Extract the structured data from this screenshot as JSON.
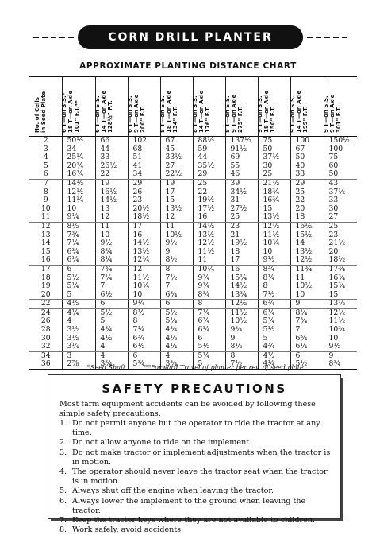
{
  "banner": {
    "title": "CORN DRILL PLANTER"
  },
  "chart_title": "APPROXIMATE PLANTING DISTANCE CHART",
  "table": {
    "headers": [
      "No. of Cells\nin Seed Plate",
      "6 T—on S.S.*\n18 T—on Axle\n101\" F.T.**",
      "6 T—on S.S.\n14 T—on Axle\n128½\" F.T.",
      "6 T—on S.S.\n9 T—on Axle\n200\" F.T.",
      "8 T—on S.S.\n18 T—on Axle\n134\" F.T.",
      "8 T—on S.S.\n14 T—on Axle\n176\" F.T.",
      "8 T—on S.S.\n9 T—on Axle\n275\" F.T.",
      "9 T—on S.S.\n18 T—on Axle\n150\" F.T.",
      "9 T—on S.S.\n14 T—on Axle\n199\" F.T.",
      "9 T—on S.S.\n9 T—on Axle\n301\" F.T."
    ],
    "rows": [
      [
        "2",
        "50½",
        "66",
        "102",
        "67",
        "88½",
        "137½",
        "75",
        "100",
        "150½"
      ],
      [
        "3",
        "34",
        "44",
        "68",
        "45",
        "59",
        "91½",
        "50",
        "67",
        "100"
      ],
      [
        "4",
        "25¼",
        "33",
        "51",
        "33½",
        "44",
        "69",
        "37½",
        "50",
        "75"
      ],
      [
        "5",
        "20¼",
        "26½",
        "41",
        "27",
        "35½",
        "55",
        "30",
        "40",
        "60"
      ],
      [
        "6",
        "16¾",
        "22",
        "34",
        "22½",
        "29",
        "46",
        "25",
        "33",
        "50"
      ],
      [
        "7",
        "14½",
        "19",
        "29",
        "19",
        "25",
        "39",
        "21½",
        "29",
        "43"
      ],
      [
        "8",
        "12½",
        "16½",
        "26",
        "17",
        "22",
        "34½",
        "18¾",
        "25",
        "37½"
      ],
      [
        "9",
        "11¼",
        "14½",
        "23",
        "15",
        "19½",
        "31",
        "16¾",
        "22",
        "33"
      ],
      [
        "10",
        "10",
        "13",
        "20½",
        "13½",
        "17½",
        "27½",
        "15",
        "20",
        "30"
      ],
      [
        "11",
        "9¼",
        "12",
        "18½",
        "12",
        "16",
        "25",
        "13½",
        "18",
        "27"
      ],
      [
        "12",
        "8½",
        "11",
        "17",
        "11",
        "14½",
        "23",
        "12½",
        "16½",
        "25"
      ],
      [
        "13",
        "7¾",
        "10",
        "16",
        "10½",
        "13½",
        "21",
        "11½",
        "15½",
        "23"
      ],
      [
        "14",
        "7¼",
        "9½",
        "14½",
        "9½",
        "12½",
        "19½",
        "10¾",
        "14",
        "21½"
      ],
      [
        "15",
        "6¾",
        "8¾",
        "13½",
        "9",
        "11½",
        "18",
        "10",
        "13½",
        "20"
      ],
      [
        "16",
        "6¼",
        "8¼",
        "12¾",
        "8½",
        "11",
        "17",
        "9½",
        "12½",
        "18½"
      ],
      [
        "17",
        "6",
        "7¾",
        "12",
        "8",
        "10¼",
        "16",
        "8¾",
        "11¾",
        "17¾"
      ],
      [
        "18",
        "5½",
        "7¼",
        "11½",
        "7½",
        "9¾",
        "15¼",
        "8¼",
        "11",
        "16¾"
      ],
      [
        "19",
        "5¼",
        "7",
        "10¾",
        "7",
        "9¼",
        "14½",
        "8",
        "10½",
        "15¾"
      ],
      [
        "20",
        "5",
        "6½",
        "10",
        "6¾",
        "8¾",
        "13¾",
        "7½",
        "10",
        "15"
      ],
      [
        "22",
        "4½",
        "6",
        "9¼",
        "6",
        "8",
        "12½",
        "6¾",
        "9",
        "13½"
      ],
      [
        "24",
        "4¼",
        "5½",
        "8½",
        "5½",
        "7¼",
        "11½",
        "6¼",
        "8¼",
        "12½"
      ],
      [
        "26",
        "4",
        "5",
        "8",
        "5¼",
        "6¾",
        "10½",
        "5¾",
        "7¾",
        "11½"
      ],
      [
        "28",
        "3½",
        "4¾",
        "7¼",
        "4¾",
        "6¼",
        "9¾",
        "5½",
        "7",
        "10¾"
      ],
      [
        "30",
        "3½",
        "4½",
        "6¾",
        "4½",
        "6",
        "9",
        "5",
        "6¾",
        "10"
      ],
      [
        "32",
        "3¼",
        "4",
        "6½",
        "4¼",
        "5½",
        "8½",
        "4¾",
        "6¼",
        "9½"
      ],
      [
        "34",
        "3",
        "4",
        "6",
        "4",
        "5¼",
        "8",
        "4½",
        "6",
        "9"
      ],
      [
        "36",
        "2⅞",
        "3¾",
        "5¾",
        "3¾",
        "5",
        "7½",
        "4¼",
        "5½",
        "8¾"
      ]
    ],
    "footnote_left": "*Seed Shaft",
    "footnote_right": "**Forward Travel of planter per rev. of seed plate."
  },
  "safety": {
    "title": "SAFETY PRECAUTIONS",
    "intro": "Most farm equipment accidents can be avoided by following these simple safety precautions.",
    "items": [
      {
        "num": "1.",
        "text": "Do not permit anyone but the operator to ride the tractor at any time."
      },
      {
        "num": "2.",
        "text": "Do not allow anyone to ride on the implement."
      },
      {
        "num": "3.",
        "text": "Do not make tractor or implement adjustments when the tractor is in motion."
      },
      {
        "num": "4.",
        "text": "The operator should never leave the tractor seat when the tractor is in motion."
      },
      {
        "num": "5.",
        "text": "Always shut off the engine when leaving the tractor."
      },
      {
        "num": "6.",
        "text": "Always lower the implement to the ground when leaving the tractor."
      },
      {
        "num": "7.",
        "text": "Keep the tractor keys where they are not available to children."
      },
      {
        "num": "8.",
        "text": "Work safely, avoid accidents."
      }
    ]
  }
}
